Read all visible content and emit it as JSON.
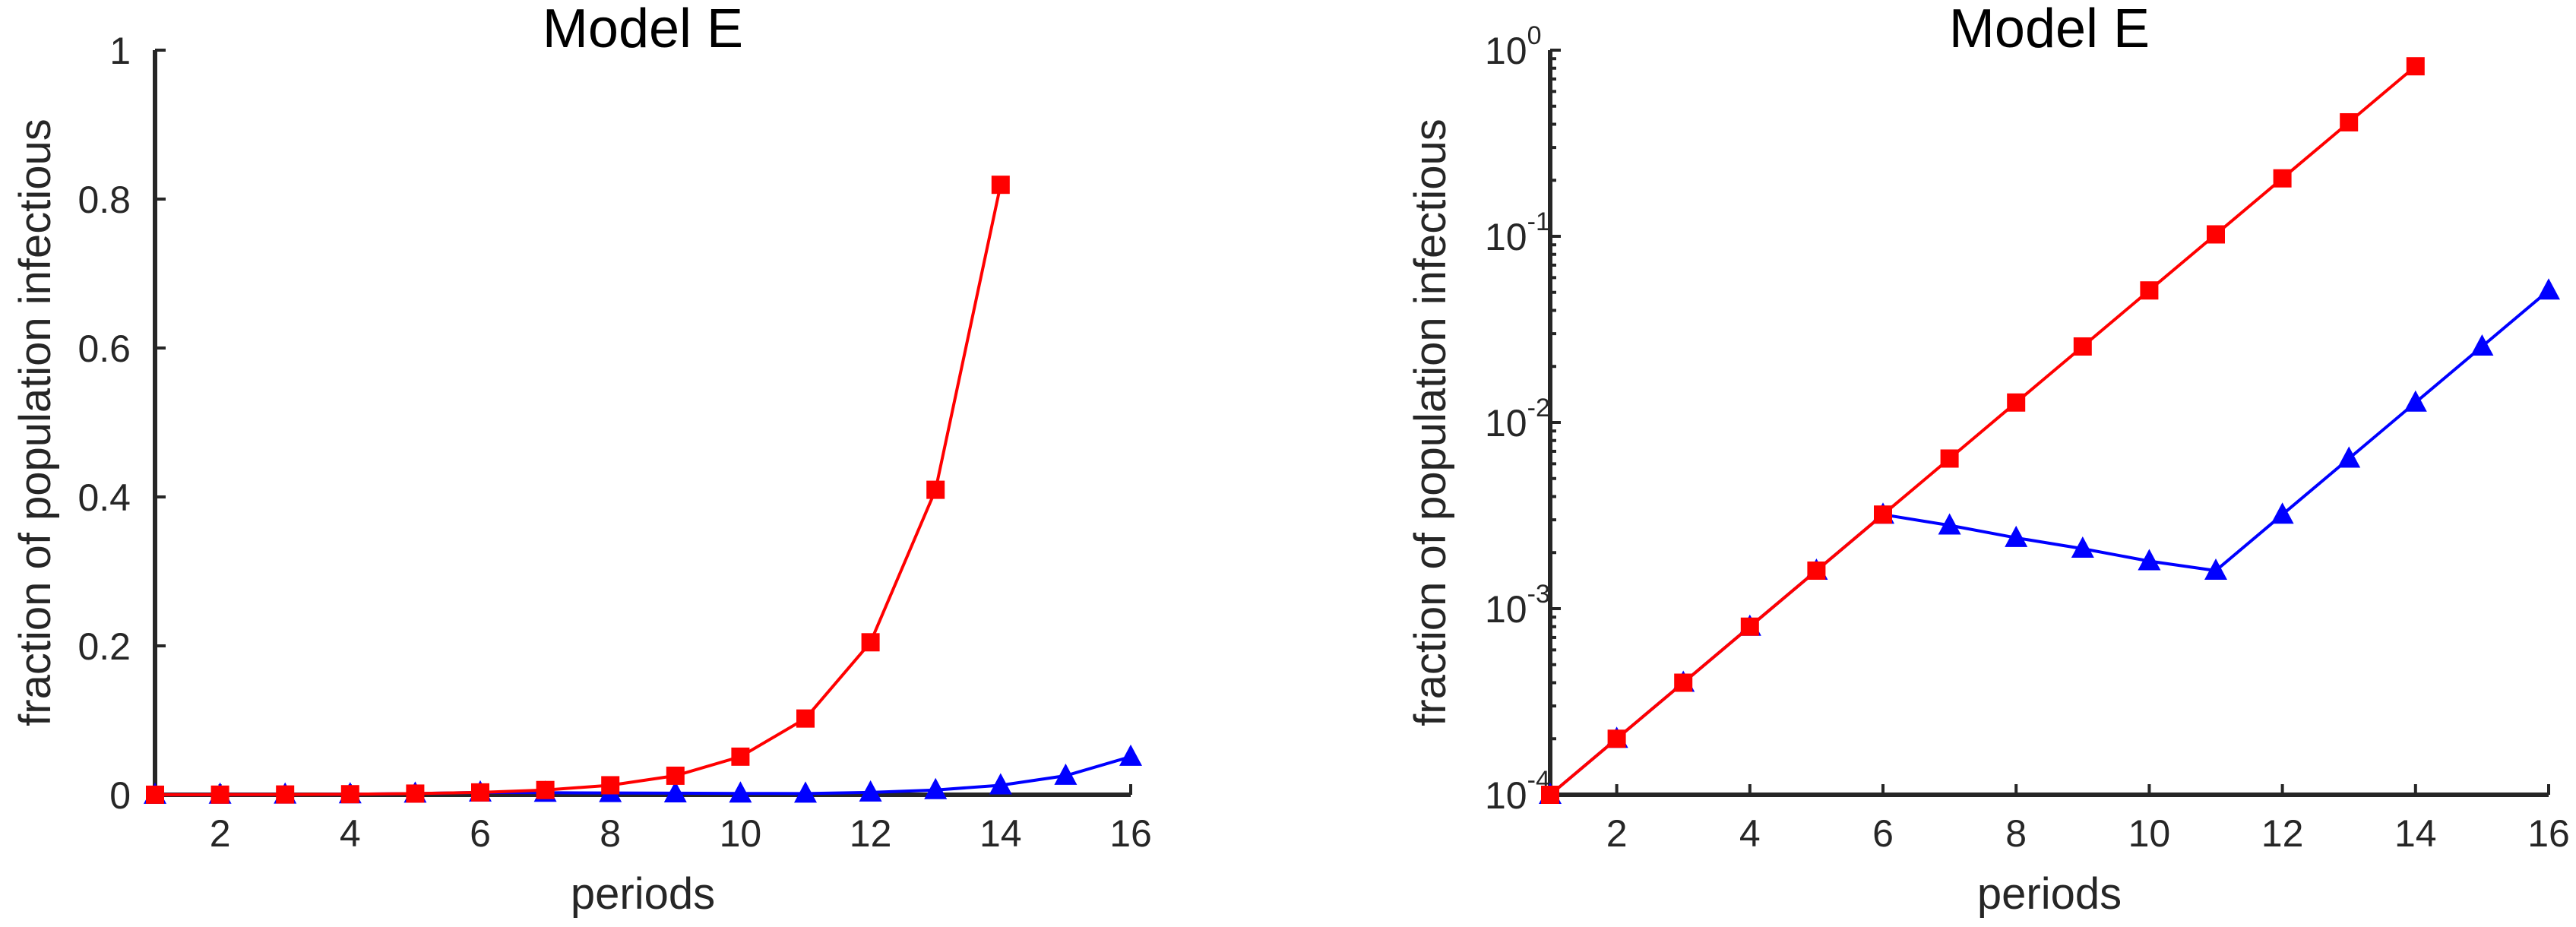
{
  "chart_data": [
    {
      "type": "line",
      "title": "Model E",
      "xlabel": "periods",
      "ylabel": "fraction of population infectious",
      "yscale": "linear",
      "xlim": [
        1,
        16
      ],
      "ylim": [
        0,
        1
      ],
      "xticks": [
        2,
        4,
        6,
        8,
        10,
        12,
        14,
        16
      ],
      "yticks": [
        0,
        0.2,
        0.4,
        0.6,
        0.8,
        1
      ],
      "ytick_labels": [
        "0",
        "0.2",
        "0.4",
        "0.6",
        "0.8",
        "1"
      ],
      "series": [
        {
          "name": "red squares",
          "color": "#ff0000",
          "marker": "square",
          "x": [
            1,
            2,
            3,
            4,
            5,
            6,
            7,
            8,
            9,
            10,
            11,
            12,
            13,
            14
          ],
          "values": [
            0.0001,
            0.0002,
            0.0004,
            0.0008,
            0.0016,
            0.0032,
            0.0064,
            0.0128,
            0.0256,
            0.0512,
            0.1024,
            0.2048,
            0.4096,
            0.8192
          ]
        },
        {
          "name": "blue triangles",
          "color": "#0000ff",
          "marker": "triangle",
          "x": [
            1,
            2,
            3,
            4,
            5,
            6,
            7,
            8,
            9,
            10,
            11,
            12,
            13,
            14,
            15,
            16
          ],
          "values": [
            0.0001,
            0.0002,
            0.0004,
            0.0008,
            0.0016,
            0.0032,
            0.0028,
            0.0024,
            0.0021,
            0.0018,
            0.0016,
            0.0032,
            0.0064,
            0.0128,
            0.0256,
            0.0512
          ]
        }
      ]
    },
    {
      "type": "line",
      "title": "Model E",
      "xlabel": "periods",
      "ylabel": "fraction of population infectious",
      "yscale": "log",
      "xlim": [
        1,
        16
      ],
      "ylim": [
        0.0001,
        1
      ],
      "xticks": [
        2,
        4,
        6,
        8,
        10,
        12,
        14,
        16
      ],
      "yticks": [
        0.0001,
        0.001,
        0.01,
        0.1,
        1
      ],
      "ytick_labels": [
        {
          "base": "10",
          "exp": "-4"
        },
        {
          "base": "10",
          "exp": "-3"
        },
        {
          "base": "10",
          "exp": "-2"
        },
        {
          "base": "10",
          "exp": "-1"
        },
        {
          "base": "10",
          "exp": "0"
        }
      ],
      "series": [
        {
          "name": "red squares",
          "color": "#ff0000",
          "marker": "square",
          "x": [
            1,
            2,
            3,
            4,
            5,
            6,
            7,
            8,
            9,
            10,
            11,
            12,
            13,
            14
          ],
          "values": [
            0.0001,
            0.0002,
            0.0004,
            0.0008,
            0.0016,
            0.0032,
            0.0064,
            0.0128,
            0.0256,
            0.0512,
            0.1024,
            0.2048,
            0.4096,
            0.8192
          ]
        },
        {
          "name": "blue triangles",
          "color": "#0000ff",
          "marker": "triangle",
          "x": [
            1,
            2,
            3,
            4,
            5,
            6,
            7,
            8,
            9,
            10,
            11,
            12,
            13,
            14,
            15,
            16
          ],
          "values": [
            0.0001,
            0.0002,
            0.0004,
            0.0008,
            0.0016,
            0.0032,
            0.0028,
            0.0024,
            0.0021,
            0.0018,
            0.0016,
            0.0032,
            0.0064,
            0.0128,
            0.0256,
            0.0512
          ]
        }
      ]
    }
  ]
}
